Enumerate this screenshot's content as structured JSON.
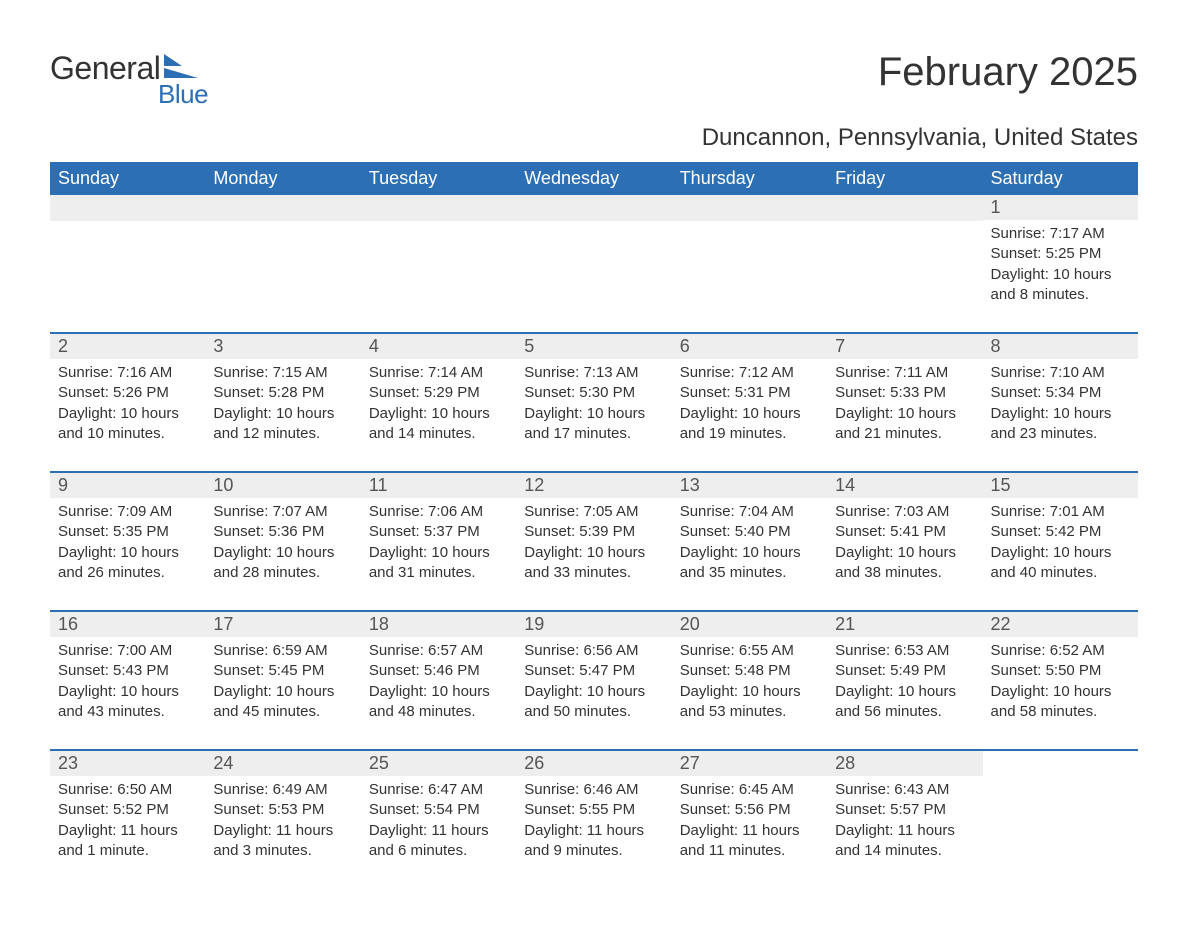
{
  "logo": {
    "main": "General",
    "sub": "Blue",
    "main_color": "#333333",
    "sub_color": "#2d6fb4"
  },
  "title": "February 2025",
  "location": "Duncannon, Pennsylvania, United States",
  "colors": {
    "header_bg": "#2d6fb4",
    "header_text": "#ffffff",
    "daynum_bg": "#eeeeee",
    "border": "#2d6fb4",
    "body_text": "#333333",
    "background": "#ffffff"
  },
  "typography": {
    "title_fontsize": 40,
    "location_fontsize": 24,
    "weekday_fontsize": 18,
    "daynum_fontsize": 18,
    "body_fontsize": 15
  },
  "layout": {
    "columns": 7,
    "rows": 5,
    "first_day_column_index": 6
  },
  "weekdays": [
    "Sunday",
    "Monday",
    "Tuesday",
    "Wednesday",
    "Thursday",
    "Friday",
    "Saturday"
  ],
  "labels": {
    "sunrise": "Sunrise:",
    "sunset": "Sunset:",
    "daylight": "Daylight:"
  },
  "days": [
    {
      "n": 1,
      "sunrise": "7:17 AM",
      "sunset": "5:25 PM",
      "daylight": "10 hours and 8 minutes."
    },
    {
      "n": 2,
      "sunrise": "7:16 AM",
      "sunset": "5:26 PM",
      "daylight": "10 hours and 10 minutes."
    },
    {
      "n": 3,
      "sunrise": "7:15 AM",
      "sunset": "5:28 PM",
      "daylight": "10 hours and 12 minutes."
    },
    {
      "n": 4,
      "sunrise": "7:14 AM",
      "sunset": "5:29 PM",
      "daylight": "10 hours and 14 minutes."
    },
    {
      "n": 5,
      "sunrise": "7:13 AM",
      "sunset": "5:30 PM",
      "daylight": "10 hours and 17 minutes."
    },
    {
      "n": 6,
      "sunrise": "7:12 AM",
      "sunset": "5:31 PM",
      "daylight": "10 hours and 19 minutes."
    },
    {
      "n": 7,
      "sunrise": "7:11 AM",
      "sunset": "5:33 PM",
      "daylight": "10 hours and 21 minutes."
    },
    {
      "n": 8,
      "sunrise": "7:10 AM",
      "sunset": "5:34 PM",
      "daylight": "10 hours and 23 minutes."
    },
    {
      "n": 9,
      "sunrise": "7:09 AM",
      "sunset": "5:35 PM",
      "daylight": "10 hours and 26 minutes."
    },
    {
      "n": 10,
      "sunrise": "7:07 AM",
      "sunset": "5:36 PM",
      "daylight": "10 hours and 28 minutes."
    },
    {
      "n": 11,
      "sunrise": "7:06 AM",
      "sunset": "5:37 PM",
      "daylight": "10 hours and 31 minutes."
    },
    {
      "n": 12,
      "sunrise": "7:05 AM",
      "sunset": "5:39 PM",
      "daylight": "10 hours and 33 minutes."
    },
    {
      "n": 13,
      "sunrise": "7:04 AM",
      "sunset": "5:40 PM",
      "daylight": "10 hours and 35 minutes."
    },
    {
      "n": 14,
      "sunrise": "7:03 AM",
      "sunset": "5:41 PM",
      "daylight": "10 hours and 38 minutes."
    },
    {
      "n": 15,
      "sunrise": "7:01 AM",
      "sunset": "5:42 PM",
      "daylight": "10 hours and 40 minutes."
    },
    {
      "n": 16,
      "sunrise": "7:00 AM",
      "sunset": "5:43 PM",
      "daylight": "10 hours and 43 minutes."
    },
    {
      "n": 17,
      "sunrise": "6:59 AM",
      "sunset": "5:45 PM",
      "daylight": "10 hours and 45 minutes."
    },
    {
      "n": 18,
      "sunrise": "6:57 AM",
      "sunset": "5:46 PM",
      "daylight": "10 hours and 48 minutes."
    },
    {
      "n": 19,
      "sunrise": "6:56 AM",
      "sunset": "5:47 PM",
      "daylight": "10 hours and 50 minutes."
    },
    {
      "n": 20,
      "sunrise": "6:55 AM",
      "sunset": "5:48 PM",
      "daylight": "10 hours and 53 minutes."
    },
    {
      "n": 21,
      "sunrise": "6:53 AM",
      "sunset": "5:49 PM",
      "daylight": "10 hours and 56 minutes."
    },
    {
      "n": 22,
      "sunrise": "6:52 AM",
      "sunset": "5:50 PM",
      "daylight": "10 hours and 58 minutes."
    },
    {
      "n": 23,
      "sunrise": "6:50 AM",
      "sunset": "5:52 PM",
      "daylight": "11 hours and 1 minute."
    },
    {
      "n": 24,
      "sunrise": "6:49 AM",
      "sunset": "5:53 PM",
      "daylight": "11 hours and 3 minutes."
    },
    {
      "n": 25,
      "sunrise": "6:47 AM",
      "sunset": "5:54 PM",
      "daylight": "11 hours and 6 minutes."
    },
    {
      "n": 26,
      "sunrise": "6:46 AM",
      "sunset": "5:55 PM",
      "daylight": "11 hours and 9 minutes."
    },
    {
      "n": 27,
      "sunrise": "6:45 AM",
      "sunset": "5:56 PM",
      "daylight": "11 hours and 11 minutes."
    },
    {
      "n": 28,
      "sunrise": "6:43 AM",
      "sunset": "5:57 PM",
      "daylight": "11 hours and 14 minutes."
    }
  ]
}
